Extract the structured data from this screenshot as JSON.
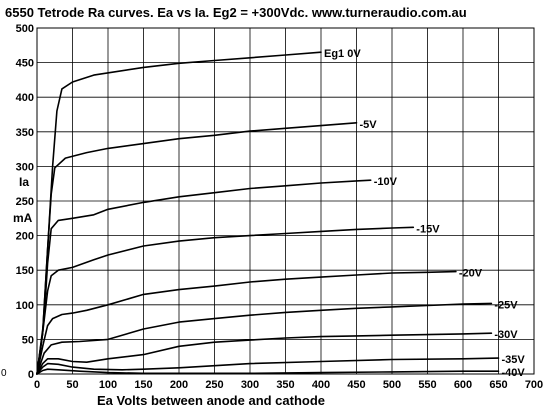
{
  "chart_data": {
    "type": "line",
    "title": "6550 Tetrode Ra curves. Ea vs Ia.  Eg2 = +300Vdc. www.turneraudio.com.au",
    "xlabel": "Ea Volts between anode and cathode",
    "ylabel_lines": [
      "Ia",
      "mA"
    ],
    "xlim": [
      0,
      700
    ],
    "ylim": [
      0,
      500
    ],
    "x_ticks": [
      0,
      50,
      100,
      150,
      200,
      250,
      300,
      350,
      400,
      450,
      500,
      550,
      600,
      650,
      700
    ],
    "y_ticks": [
      0,
      50,
      100,
      150,
      200,
      250,
      300,
      350,
      400,
      450,
      500
    ],
    "x_tick_labels": [
      "0",
      "50",
      "100",
      "150",
      "200",
      "250",
      "300",
      "350",
      "400",
      "450",
      "500",
      "550",
      "600",
      "650",
      "700"
    ],
    "y_tick_labels": [
      "0",
      "50",
      "100",
      "150",
      "200",
      "250",
      "300",
      "350",
      "400",
      "450",
      "500"
    ],
    "grid": true,
    "series": [
      {
        "name": "Eg1 0V",
        "label": "Eg1 0V",
        "points": [
          [
            0,
            0
          ],
          [
            8,
            60
          ],
          [
            15,
            180
          ],
          [
            22,
            300
          ],
          [
            28,
            380
          ],
          [
            35,
            412
          ],
          [
            50,
            422
          ],
          [
            80,
            432
          ],
          [
            150,
            443
          ],
          [
            200,
            449
          ],
          [
            250,
            453
          ],
          [
            300,
            457
          ],
          [
            350,
            461
          ],
          [
            400,
            465
          ]
        ]
      },
      {
        "name": "-5V",
        "label": "-5V",
        "points": [
          [
            0,
            0
          ],
          [
            8,
            60
          ],
          [
            15,
            180
          ],
          [
            20,
            260
          ],
          [
            25,
            298
          ],
          [
            40,
            312
          ],
          [
            70,
            320
          ],
          [
            100,
            326
          ],
          [
            150,
            333
          ],
          [
            200,
            340
          ],
          [
            250,
            345
          ],
          [
            300,
            351
          ],
          [
            350,
            355
          ],
          [
            400,
            359
          ],
          [
            450,
            363
          ]
        ]
      },
      {
        "name": "-10V",
        "label": "-10V",
        "points": [
          [
            0,
            0
          ],
          [
            10,
            80
          ],
          [
            15,
            160
          ],
          [
            20,
            210
          ],
          [
            30,
            222
          ],
          [
            50,
            225
          ],
          [
            80,
            230
          ],
          [
            100,
            238
          ],
          [
            150,
            248
          ],
          [
            200,
            256
          ],
          [
            250,
            262
          ],
          [
            300,
            268
          ],
          [
            350,
            272
          ],
          [
            400,
            276
          ],
          [
            450,
            279
          ],
          [
            470,
            280
          ]
        ]
      },
      {
        "name": "-15V",
        "label": "-15V",
        "points": [
          [
            0,
            0
          ],
          [
            8,
            60
          ],
          [
            15,
            120
          ],
          [
            20,
            142
          ],
          [
            30,
            150
          ],
          [
            50,
            154
          ],
          [
            80,
            165
          ],
          [
            100,
            172
          ],
          [
            150,
            185
          ],
          [
            200,
            192
          ],
          [
            250,
            197
          ],
          [
            300,
            200
          ],
          [
            350,
            203
          ],
          [
            400,
            206
          ],
          [
            450,
            209
          ],
          [
            500,
            211
          ],
          [
            530,
            212
          ]
        ]
      },
      {
        "name": "-20V",
        "label": "-20V",
        "points": [
          [
            0,
            0
          ],
          [
            8,
            40
          ],
          [
            15,
            70
          ],
          [
            22,
            80
          ],
          [
            35,
            86
          ],
          [
            50,
            88
          ],
          [
            70,
            92
          ],
          [
            100,
            100
          ],
          [
            150,
            115
          ],
          [
            200,
            122
          ],
          [
            250,
            127
          ],
          [
            300,
            133
          ],
          [
            350,
            137
          ],
          [
            400,
            140
          ],
          [
            450,
            143
          ],
          [
            500,
            146
          ],
          [
            550,
            147
          ],
          [
            590,
            148
          ]
        ]
      },
      {
        "name": "-25V",
        "label": "-25V",
        "points": [
          [
            0,
            0
          ],
          [
            10,
            30
          ],
          [
            20,
            42
          ],
          [
            35,
            46
          ],
          [
            60,
            47
          ],
          [
            100,
            50
          ],
          [
            150,
            65
          ],
          [
            200,
            75
          ],
          [
            250,
            80
          ],
          [
            300,
            85
          ],
          [
            350,
            89
          ],
          [
            400,
            92
          ],
          [
            450,
            95
          ],
          [
            500,
            97
          ],
          [
            550,
            99
          ],
          [
            600,
            101
          ],
          [
            640,
            102
          ]
        ]
      },
      {
        "name": "-30V",
        "label": "-30V",
        "points": [
          [
            0,
            0
          ],
          [
            8,
            15
          ],
          [
            15,
            22
          ],
          [
            30,
            22
          ],
          [
            50,
            18
          ],
          [
            70,
            17
          ],
          [
            100,
            22
          ],
          [
            150,
            28
          ],
          [
            200,
            40
          ],
          [
            250,
            46
          ],
          [
            300,
            49
          ],
          [
            350,
            52
          ],
          [
            400,
            54
          ],
          [
            450,
            55
          ],
          [
            500,
            56
          ],
          [
            550,
            57
          ],
          [
            600,
            58
          ],
          [
            640,
            59
          ]
        ]
      },
      {
        "name": "-35V",
        "label": "-35V",
        "points": [
          [
            0,
            0
          ],
          [
            8,
            10
          ],
          [
            15,
            15
          ],
          [
            30,
            14
          ],
          [
            50,
            10
          ],
          [
            80,
            7
          ],
          [
            120,
            6
          ],
          [
            150,
            7
          ],
          [
            200,
            9
          ],
          [
            250,
            12
          ],
          [
            300,
            15
          ],
          [
            400,
            18
          ],
          [
            500,
            21
          ],
          [
            600,
            22
          ],
          [
            650,
            23
          ]
        ]
      },
      {
        "name": "-40V",
        "label": "-40V",
        "points": [
          [
            0,
            0
          ],
          [
            8,
            5
          ],
          [
            15,
            7
          ],
          [
            30,
            6
          ],
          [
            60,
            4
          ],
          [
            100,
            2
          ],
          [
            150,
            1
          ],
          [
            200,
            1
          ],
          [
            300,
            1
          ],
          [
            400,
            2
          ],
          [
            500,
            3
          ],
          [
            600,
            4
          ],
          [
            650,
            4
          ]
        ]
      }
    ],
    "footer_mark": "0"
  }
}
